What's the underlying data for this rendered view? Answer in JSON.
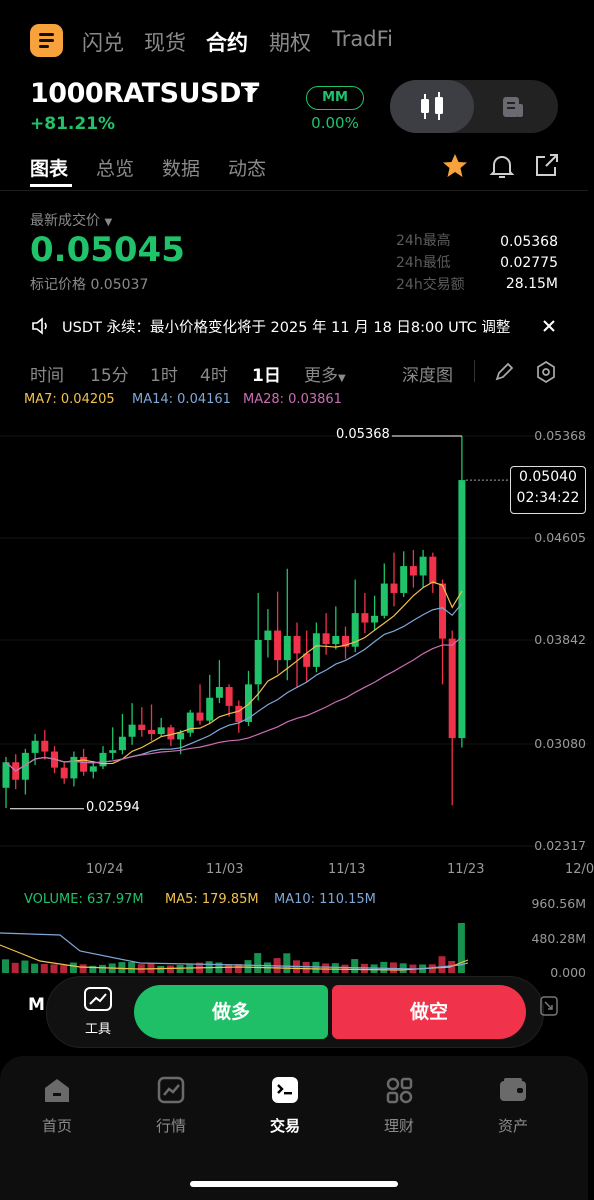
{
  "top_nav": [
    "闪兑",
    "现货",
    "合约",
    "期权",
    "TradFi"
  ],
  "top_nav_active": "合约",
  "symbol": "1000RATSUSDT",
  "change_pct": "+81.21%",
  "mm_badge": "MM",
  "mm_pct": "0.00%",
  "tabs": [
    "图表",
    "总览",
    "数据",
    "动态"
  ],
  "last_price_label": "最新成交价",
  "last_price": "0.05045",
  "mark_price_label": "标记价格",
  "mark_price": "0.05037",
  "stats": {
    "high_label": "24h最高",
    "high": "0.05368",
    "low_label": "24h最低",
    "low": "0.02775",
    "vol_label": "24h交易额",
    "vol": "28.15M"
  },
  "notice": "USDT 永续：最小价格变化将于 2025 年 11 月 18 日8:00 UTC 调整",
  "intervals": [
    "时间",
    "15分",
    "1时",
    "4时",
    "1日",
    "更多"
  ],
  "interval_active": "1日",
  "depth_label": "深度图",
  "ma": {
    "ma7": "MA7: 0.04205",
    "ma14": "MA14: 0.04161",
    "ma28": "MA28: 0.03861"
  },
  "colors": {
    "up": "#20c26a",
    "down": "#f0334a",
    "ma7": "#f2c14e",
    "ma14": "#7fa8d8",
    "ma28": "#c86fb3"
  },
  "chart_data": {
    "type": "candlestick",
    "y_ticks": [
      "0.05368",
      "0.04605",
      "0.03842",
      "0.03080",
      "0.02317"
    ],
    "x_ticks": [
      "10/24",
      "11/03",
      "11/13",
      "11/23",
      "12/0"
    ],
    "ylim": [
      0.02317,
      0.05368
    ],
    "high_marker": "0.05368",
    "low_marker": "0.02594",
    "current_price": "0.05040",
    "countdown": "02:34:22",
    "candles": [
      {
        "o": 0.0275,
        "c": 0.0294,
        "h": 0.0298,
        "l": 0.026
      },
      {
        "o": 0.0294,
        "c": 0.0281,
        "h": 0.03,
        "l": 0.0274
      },
      {
        "o": 0.0281,
        "c": 0.0301,
        "h": 0.0304,
        "l": 0.027
      },
      {
        "o": 0.0301,
        "c": 0.031,
        "h": 0.0315,
        "l": 0.0292
      },
      {
        "o": 0.031,
        "c": 0.0302,
        "h": 0.0318,
        "l": 0.0296
      },
      {
        "o": 0.0302,
        "c": 0.029,
        "h": 0.0306,
        "l": 0.0286
      },
      {
        "o": 0.029,
        "c": 0.0282,
        "h": 0.0294,
        "l": 0.0278
      },
      {
        "o": 0.0282,
        "c": 0.0298,
        "h": 0.0302,
        "l": 0.0276
      },
      {
        "o": 0.0298,
        "c": 0.0287,
        "h": 0.0304,
        "l": 0.0284
      },
      {
        "o": 0.0287,
        "c": 0.0291,
        "h": 0.0295,
        "l": 0.0282
      },
      {
        "o": 0.0291,
        "c": 0.0301,
        "h": 0.0306,
        "l": 0.0289
      },
      {
        "o": 0.0301,
        "c": 0.0303,
        "h": 0.032,
        "l": 0.0296
      },
      {
        "o": 0.0303,
        "c": 0.0313,
        "h": 0.033,
        "l": 0.03
      },
      {
        "o": 0.0313,
        "c": 0.0322,
        "h": 0.0338,
        "l": 0.0307
      },
      {
        "o": 0.0322,
        "c": 0.0318,
        "h": 0.0335,
        "l": 0.0313
      },
      {
        "o": 0.0318,
        "c": 0.0315,
        "h": 0.0337,
        "l": 0.031
      },
      {
        "o": 0.0315,
        "c": 0.032,
        "h": 0.0327,
        "l": 0.0313
      },
      {
        "o": 0.032,
        "c": 0.0311,
        "h": 0.0322,
        "l": 0.0306
      },
      {
        "o": 0.0311,
        "c": 0.0316,
        "h": 0.0318,
        "l": 0.03
      },
      {
        "o": 0.0316,
        "c": 0.0331,
        "h": 0.0333,
        "l": 0.0313
      },
      {
        "o": 0.0331,
        "c": 0.0325,
        "h": 0.0352,
        "l": 0.0322
      },
      {
        "o": 0.0325,
        "c": 0.0342,
        "h": 0.0359,
        "l": 0.0323
      },
      {
        "o": 0.0342,
        "c": 0.035,
        "h": 0.037,
        "l": 0.0338
      },
      {
        "o": 0.035,
        "c": 0.0336,
        "h": 0.0352,
        "l": 0.0328
      },
      {
        "o": 0.0336,
        "c": 0.0324,
        "h": 0.034,
        "l": 0.0316
      },
      {
        "o": 0.0324,
        "c": 0.0352,
        "h": 0.0362,
        "l": 0.0321
      },
      {
        "o": 0.0352,
        "c": 0.0385,
        "h": 0.042,
        "l": 0.034
      },
      {
        "o": 0.0385,
        "c": 0.0392,
        "h": 0.0408,
        "l": 0.0372
      },
      {
        "o": 0.0392,
        "c": 0.037,
        "h": 0.0421,
        "l": 0.036
      },
      {
        "o": 0.037,
        "c": 0.0388,
        "h": 0.0438,
        "l": 0.0355
      },
      {
        "o": 0.0388,
        "c": 0.0375,
        "h": 0.0398,
        "l": 0.035
      },
      {
        "o": 0.0375,
        "c": 0.0365,
        "h": 0.0392,
        "l": 0.0354
      },
      {
        "o": 0.0365,
        "c": 0.039,
        "h": 0.0398,
        "l": 0.0361
      },
      {
        "o": 0.039,
        "c": 0.0382,
        "h": 0.0405,
        "l": 0.0374
      },
      {
        "o": 0.0382,
        "c": 0.0388,
        "h": 0.041,
        "l": 0.0378
      },
      {
        "o": 0.0388,
        "c": 0.038,
        "h": 0.0395,
        "l": 0.0371
      },
      {
        "o": 0.038,
        "c": 0.0405,
        "h": 0.043,
        "l": 0.0376
      },
      {
        "o": 0.0405,
        "c": 0.0398,
        "h": 0.042,
        "l": 0.039
      },
      {
        "o": 0.0398,
        "c": 0.0403,
        "h": 0.0418,
        "l": 0.0392
      },
      {
        "o": 0.0403,
        "c": 0.0427,
        "h": 0.0442,
        "l": 0.0401
      },
      {
        "o": 0.0427,
        "c": 0.042,
        "h": 0.045,
        "l": 0.041
      },
      {
        "o": 0.042,
        "c": 0.044,
        "h": 0.0451,
        "l": 0.0417
      },
      {
        "o": 0.044,
        "c": 0.0433,
        "h": 0.0452,
        "l": 0.0424
      },
      {
        "o": 0.0433,
        "c": 0.0447,
        "h": 0.0452,
        "l": 0.0424
      },
      {
        "o": 0.0447,
        "c": 0.0427,
        "h": 0.045,
        "l": 0.042
      },
      {
        "o": 0.0427,
        "c": 0.0386,
        "h": 0.043,
        "l": 0.0352
      },
      {
        "o": 0.0386,
        "c": 0.0312,
        "h": 0.0392,
        "l": 0.0262
      },
      {
        "o": 0.0312,
        "c": 0.0504,
        "h": 0.05368,
        "l": 0.0305
      }
    ]
  },
  "volume": {
    "vol": "VOLUME: 637.97M",
    "ma5": "MA5: 179.85M",
    "ma10": "MA10: 110.15M",
    "ticks": [
      "960.56M",
      "480.28M",
      "0.000"
    ]
  },
  "trade": {
    "tools_label": "工具",
    "long_label": "做多",
    "short_label": "做空",
    "left_letter": "M"
  },
  "bottom_nav": [
    "首页",
    "行情",
    "交易",
    "理财",
    "资产"
  ],
  "bottom_nav_active": "交易"
}
